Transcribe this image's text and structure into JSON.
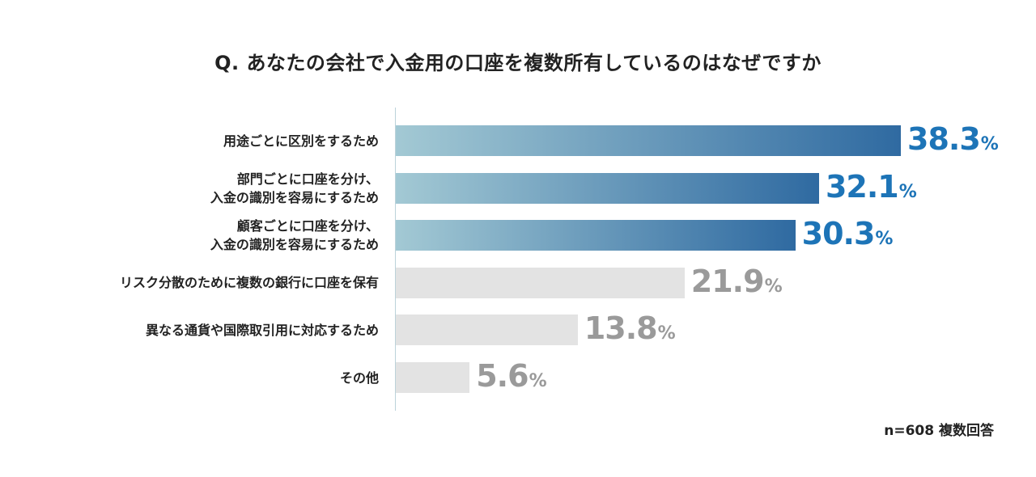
{
  "chart_data": {
    "type": "bar",
    "orientation": "horizontal",
    "title": "Q. あなたの会社で入金用の口座を複数所有しているのはなぜですか",
    "categories": [
      "用途ごとに区別をするため",
      "部門ごとに口座を分け、\n入金の識別を容易にするため",
      "顧客ごとに口座を分け、\n入金の識別を容易にするため",
      "リスク分散のために複数の銀行に口座を保有",
      "異なる通貨や国際取引用に対応するため",
      "その他"
    ],
    "values": [
      38.3,
      32.1,
      30.3,
      21.9,
      13.8,
      5.6
    ],
    "value_labels": [
      "38.3",
      "32.1",
      "30.3",
      "21.9",
      "13.8",
      "5.6"
    ],
    "unit": "%",
    "highlighted": [
      true,
      true,
      true,
      false,
      false,
      false
    ],
    "xlim": [
      0,
      40
    ],
    "grid": false,
    "note": "n=608 複数回答",
    "colors": {
      "highlight_start": "#a3c9d4",
      "highlight_end": "#2f6aa1",
      "highlight_label": "#1d74b7",
      "normal_bar": "#e3e3e3",
      "normal_label": "#9a9a9a"
    }
  }
}
